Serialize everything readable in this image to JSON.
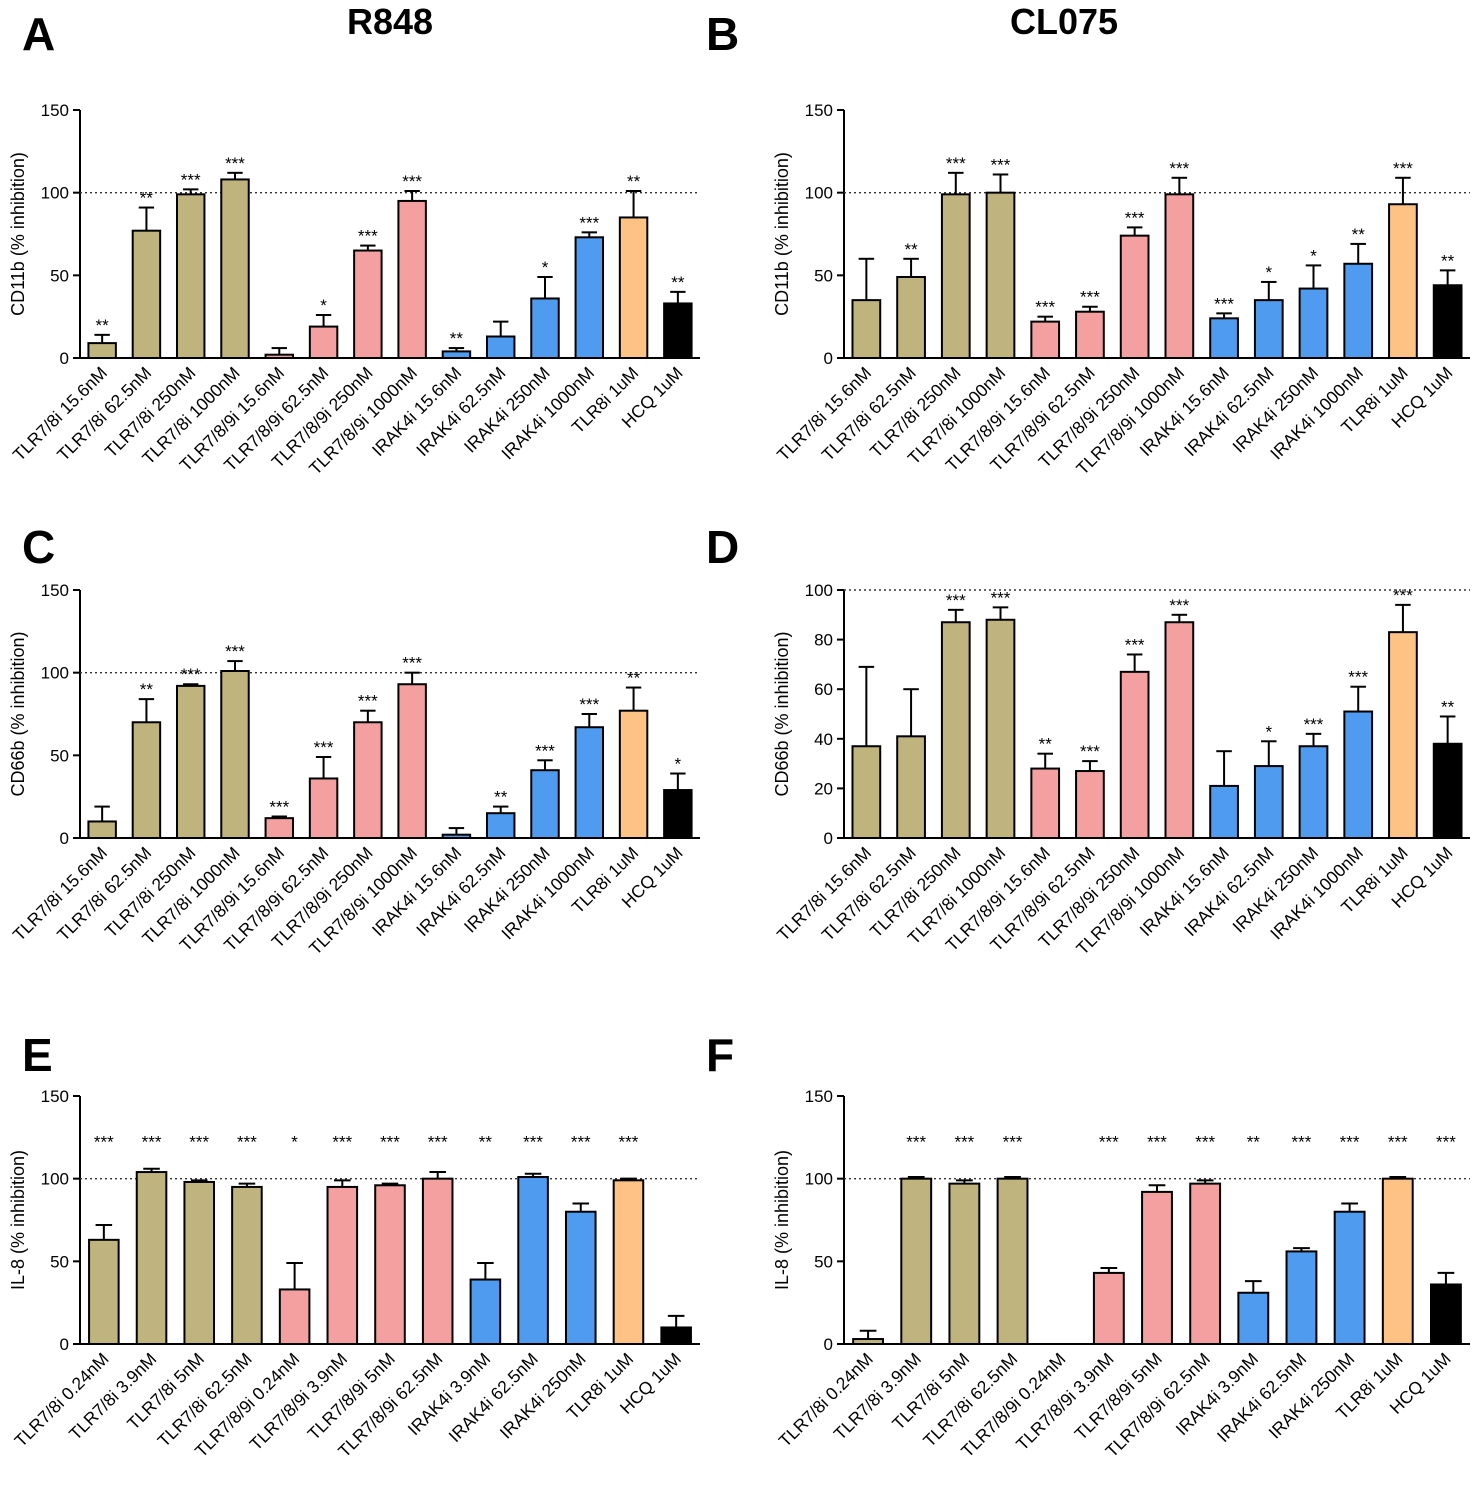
{
  "figure": {
    "header_left": "R848",
    "header_right": "CL075",
    "colors": {
      "tan": "#C0B47E",
      "pink": "#F5A0A0",
      "blue": "#4F9BF0",
      "orange": "#FFC285",
      "black": "#000000"
    }
  },
  "chart_data": [
    {
      "id": "A",
      "type": "bar",
      "panel_label": "A",
      "ylabel": "CD11b (% inhibition)",
      "ylim": [
        0,
        150
      ],
      "yticks": [
        0,
        50,
        100,
        150
      ],
      "ref_line": 100,
      "categories": [
        "TLR7/8i 15.6nM",
        "TLR7/8i 62.5nM",
        "TLR7/8i 250nM",
        "TLR7/8i 1000nM",
        "TLR7/8/9i 15.6nM",
        "TLR7/8/9i 62.5nM",
        "TLR7/8/9i 250nM",
        "TLR7/8/9i 1000nM",
        "IRAK4i 15.6nM",
        "IRAK4i 62.5nM",
        "IRAK4i 250nM",
        "IRAK4i 1000nM",
        "TLR8i 1uM",
        "HCQ 1uM"
      ],
      "values": [
        9,
        77,
        99,
        108,
        2,
        19,
        65,
        95,
        4,
        13,
        36,
        73,
        85,
        33
      ],
      "errors": [
        5,
        14,
        3,
        4,
        4,
        7,
        3,
        6,
        2,
        9,
        13,
        3,
        16,
        7
      ],
      "significance": [
        "**",
        "**",
        "***",
        "***",
        "",
        "*",
        "***",
        "***",
        "**",
        "",
        "*",
        "***",
        "**",
        "**"
      ],
      "colors": [
        "tan",
        "tan",
        "tan",
        "tan",
        "pink",
        "pink",
        "pink",
        "pink",
        "blue",
        "blue",
        "blue",
        "blue",
        "orange",
        "black"
      ]
    },
    {
      "id": "B",
      "type": "bar",
      "panel_label": "B",
      "ylabel": "CD11b (% inhibition)",
      "ylim": [
        0,
        150
      ],
      "yticks": [
        0,
        50,
        100,
        150
      ],
      "ref_line": 100,
      "categories": [
        "TLR7/8i 15.6nM",
        "TLR7/8i 62.5nM",
        "TLR7/8i 250nM",
        "TLR7/8i 1000nM",
        "TLR7/8/9i 15.6nM",
        "TLR7/8/9i 62.5nM",
        "TLR7/8/9i 250nM",
        "TLR7/8/9i 1000nM",
        "IRAK4i 15.6nM",
        "IRAK4i 62.5nM",
        "IRAK4i 250nM",
        "IRAK4i 1000nM",
        "TLR8i 1uM",
        "HCQ 1uM"
      ],
      "values": [
        35,
        49,
        99,
        100,
        22,
        28,
        74,
        99,
        24,
        35,
        42,
        57,
        93,
        44
      ],
      "errors": [
        25,
        11,
        13,
        11,
        3,
        3,
        5,
        10,
        3,
        11,
        14,
        12,
        16,
        9
      ],
      "significance": [
        "",
        "**",
        "***",
        "***",
        "***",
        "***",
        "***",
        "***",
        "***",
        "*",
        "*",
        "**",
        "***",
        "**"
      ],
      "colors": [
        "tan",
        "tan",
        "tan",
        "tan",
        "pink",
        "pink",
        "pink",
        "pink",
        "blue",
        "blue",
        "blue",
        "blue",
        "orange",
        "black"
      ]
    },
    {
      "id": "C",
      "type": "bar",
      "panel_label": "C",
      "ylabel": "CD66b (% inhibition)",
      "ylim": [
        0,
        150
      ],
      "yticks": [
        0,
        50,
        100,
        150
      ],
      "ref_line": 100,
      "categories": [
        "TLR7/8i 15.6nM",
        "TLR7/8i 62.5nM",
        "TLR7/8i 250nM",
        "TLR7/8i 1000nM",
        "TLR7/8/9i 15.6nM",
        "TLR7/8/9i 62.5nM",
        "TLR7/8/9i 250nM",
        "TLR7/8/9i 1000nM",
        "IRAK4i 15.6nM",
        "IRAK4i 62.5nM",
        "IRAK4i 250nM",
        "IRAK4i 1000nM",
        "TLR8i 1uM",
        "HCQ 1uM"
      ],
      "values": [
        10,
        70,
        92,
        101,
        12,
        36,
        70,
        93,
        2,
        15,
        41,
        67,
        77,
        29
      ],
      "errors": [
        9,
        14,
        1,
        6,
        1,
        13,
        7,
        7,
        4,
        4,
        6,
        8,
        14,
        10
      ],
      "significance": [
        "",
        "**",
        "***",
        "***",
        "***",
        "***",
        "***",
        "***",
        "",
        "**",
        "***",
        "***",
        "**",
        "*"
      ],
      "colors": [
        "tan",
        "tan",
        "tan",
        "tan",
        "pink",
        "pink",
        "pink",
        "pink",
        "blue",
        "blue",
        "blue",
        "blue",
        "orange",
        "black"
      ]
    },
    {
      "id": "D",
      "type": "bar",
      "panel_label": "D",
      "ylabel": "CD66b (% inhibition)",
      "ylim": [
        0,
        100
      ],
      "yticks": [
        0,
        20,
        40,
        60,
        80,
        100
      ],
      "ref_line": 100,
      "categories": [
        "TLR7/8i 15.6nM",
        "TLR7/8i 62.5nM",
        "TLR7/8i 250nM",
        "TLR7/8i 1000nM",
        "TLR7/8/9i 15.6nM",
        "TLR7/8/9i 62.5nM",
        "TLR7/8/9i 250nM",
        "TLR7/8/9i 1000nM",
        "IRAK4i 15.6nM",
        "IRAK4i 62.5nM",
        "IRAK4i 250nM",
        "IRAK4i 1000nM",
        "TLR8i 1uM",
        "HCQ 1uM"
      ],
      "values": [
        37,
        41,
        87,
        88,
        28,
        27,
        67,
        87,
        21,
        29,
        37,
        51,
        83,
        38
      ],
      "errors": [
        32,
        19,
        5,
        5,
        6,
        4,
        7,
        3,
        14,
        10,
        5,
        10,
        11,
        11
      ],
      "significance": [
        "",
        "",
        "***",
        "***",
        "**",
        "***",
        "***",
        "***",
        "",
        "*",
        "***",
        "***",
        "***",
        "**"
      ],
      "colors": [
        "tan",
        "tan",
        "tan",
        "tan",
        "pink",
        "pink",
        "pink",
        "pink",
        "blue",
        "blue",
        "blue",
        "blue",
        "orange",
        "black"
      ]
    },
    {
      "id": "E",
      "type": "bar",
      "panel_label": "E",
      "ylabel": "IL-8 (% inhibition)",
      "ylim": [
        0,
        150
      ],
      "yticks": [
        0,
        50,
        100,
        150
      ],
      "ref_line": 100,
      "categories": [
        "TLR7/8i 0.24nM",
        "TLR7/8i 3.9nM",
        "TLR7/8i 5nM",
        "TLR7/8i 62.5nM",
        "TLR7/8/9i 0.24nM",
        "TLR7/8/9i 3.9nM",
        "TLR7/8/9i 5nM",
        "TLR7/8/9i 62.5nM",
        "IRAK4i 3.9nM",
        "IRAK4i 62.5nM",
        "IRAK4i 250nM",
        "TLR8i 1uM",
        "HCQ 1uM"
      ],
      "values": [
        63,
        104,
        98,
        95,
        33,
        95,
        96,
        100,
        39,
        101,
        80,
        99,
        10
      ],
      "errors": [
        9,
        2,
        1,
        2,
        16,
        4,
        1,
        4,
        10,
        2,
        5,
        1,
        7
      ],
      "significance": [
        "***",
        "***",
        "***",
        "***",
        "*",
        "***",
        "***",
        "***",
        "**",
        "***",
        "***",
        "***",
        ""
      ],
      "colors": [
        "tan",
        "tan",
        "tan",
        "tan",
        "pink",
        "pink",
        "pink",
        "pink",
        "blue",
        "blue",
        "blue",
        "orange",
        "black"
      ]
    },
    {
      "id": "F",
      "type": "bar",
      "panel_label": "F",
      "ylabel": "IL-8 (% inhibition)",
      "ylim": [
        0,
        150
      ],
      "yticks": [
        0,
        50,
        100,
        150
      ],
      "ref_line": 100,
      "categories": [
        "TLR7/8i 0.24nM",
        "TLR7/8i 3.9nM",
        "TLR7/8i 5nM",
        "TLR7/8i 62.5nM",
        "TLR7/8/9i 0.24nM",
        "TLR7/8/9i 3.9nM",
        "TLR7/8/9i 5nM",
        "TLR7/8/9i 62.5nM",
        "IRAK4i 3.9nM",
        "IRAK4i 62.5nM",
        "IRAK4i 250nM",
        "TLR8i 1uM",
        "HCQ 1uM"
      ],
      "values": [
        3,
        100,
        97,
        100,
        0,
        43,
        92,
        97,
        31,
        56,
        80,
        100,
        36
      ],
      "errors": [
        5,
        1,
        2,
        1,
        0,
        3,
        4,
        2,
        7,
        2,
        5,
        1,
        7
      ],
      "significance": [
        "",
        "***",
        "***",
        "***",
        "",
        "***",
        "***",
        "***",
        "**",
        "***",
        "***",
        "***",
        "***"
      ],
      "colors": [
        "tan",
        "tan",
        "tan",
        "tan",
        "pink",
        "pink",
        "pink",
        "pink",
        "blue",
        "blue",
        "blue",
        "orange",
        "black"
      ]
    }
  ]
}
